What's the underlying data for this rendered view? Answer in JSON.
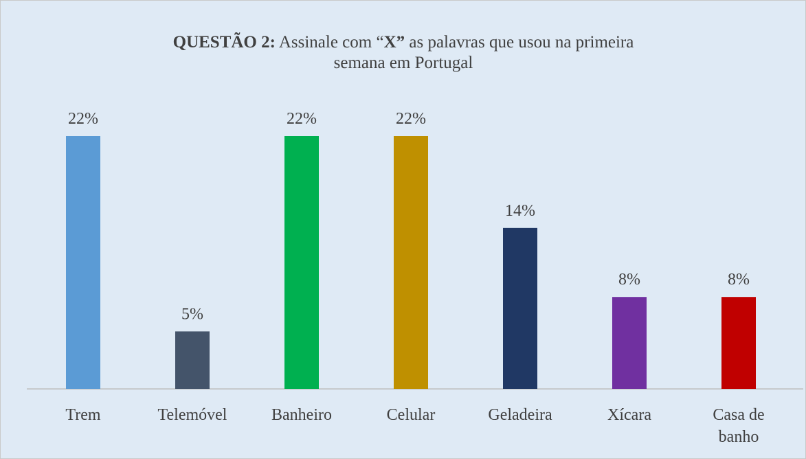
{
  "chart_data": {
    "type": "bar",
    "title": [
      [
        {
          "text": "QUESTÃO 2:",
          "bold": true
        },
        {
          "text": " Assinale com “"
        },
        {
          "text": "X”",
          "bold": true
        },
        {
          "text": " as palavras que usou na primeira"
        }
      ],
      [
        {
          "text": "semana em Portugal"
        }
      ]
    ],
    "categories": [
      "Trem",
      "Telemóvel",
      "Banheiro",
      "Celular",
      "Geladeira",
      "Xícara",
      "Casa de banho"
    ],
    "values": [
      22,
      5,
      22,
      22,
      14,
      8,
      8
    ],
    "value_labels": [
      "22%",
      "5%",
      "22%",
      "22%",
      "14%",
      "8%",
      "8%"
    ],
    "colors": [
      "#5b9bd5",
      "#44546a",
      "#00b050",
      "#bf9000",
      "#203864",
      "#7030a0",
      "#c00000"
    ]
  }
}
